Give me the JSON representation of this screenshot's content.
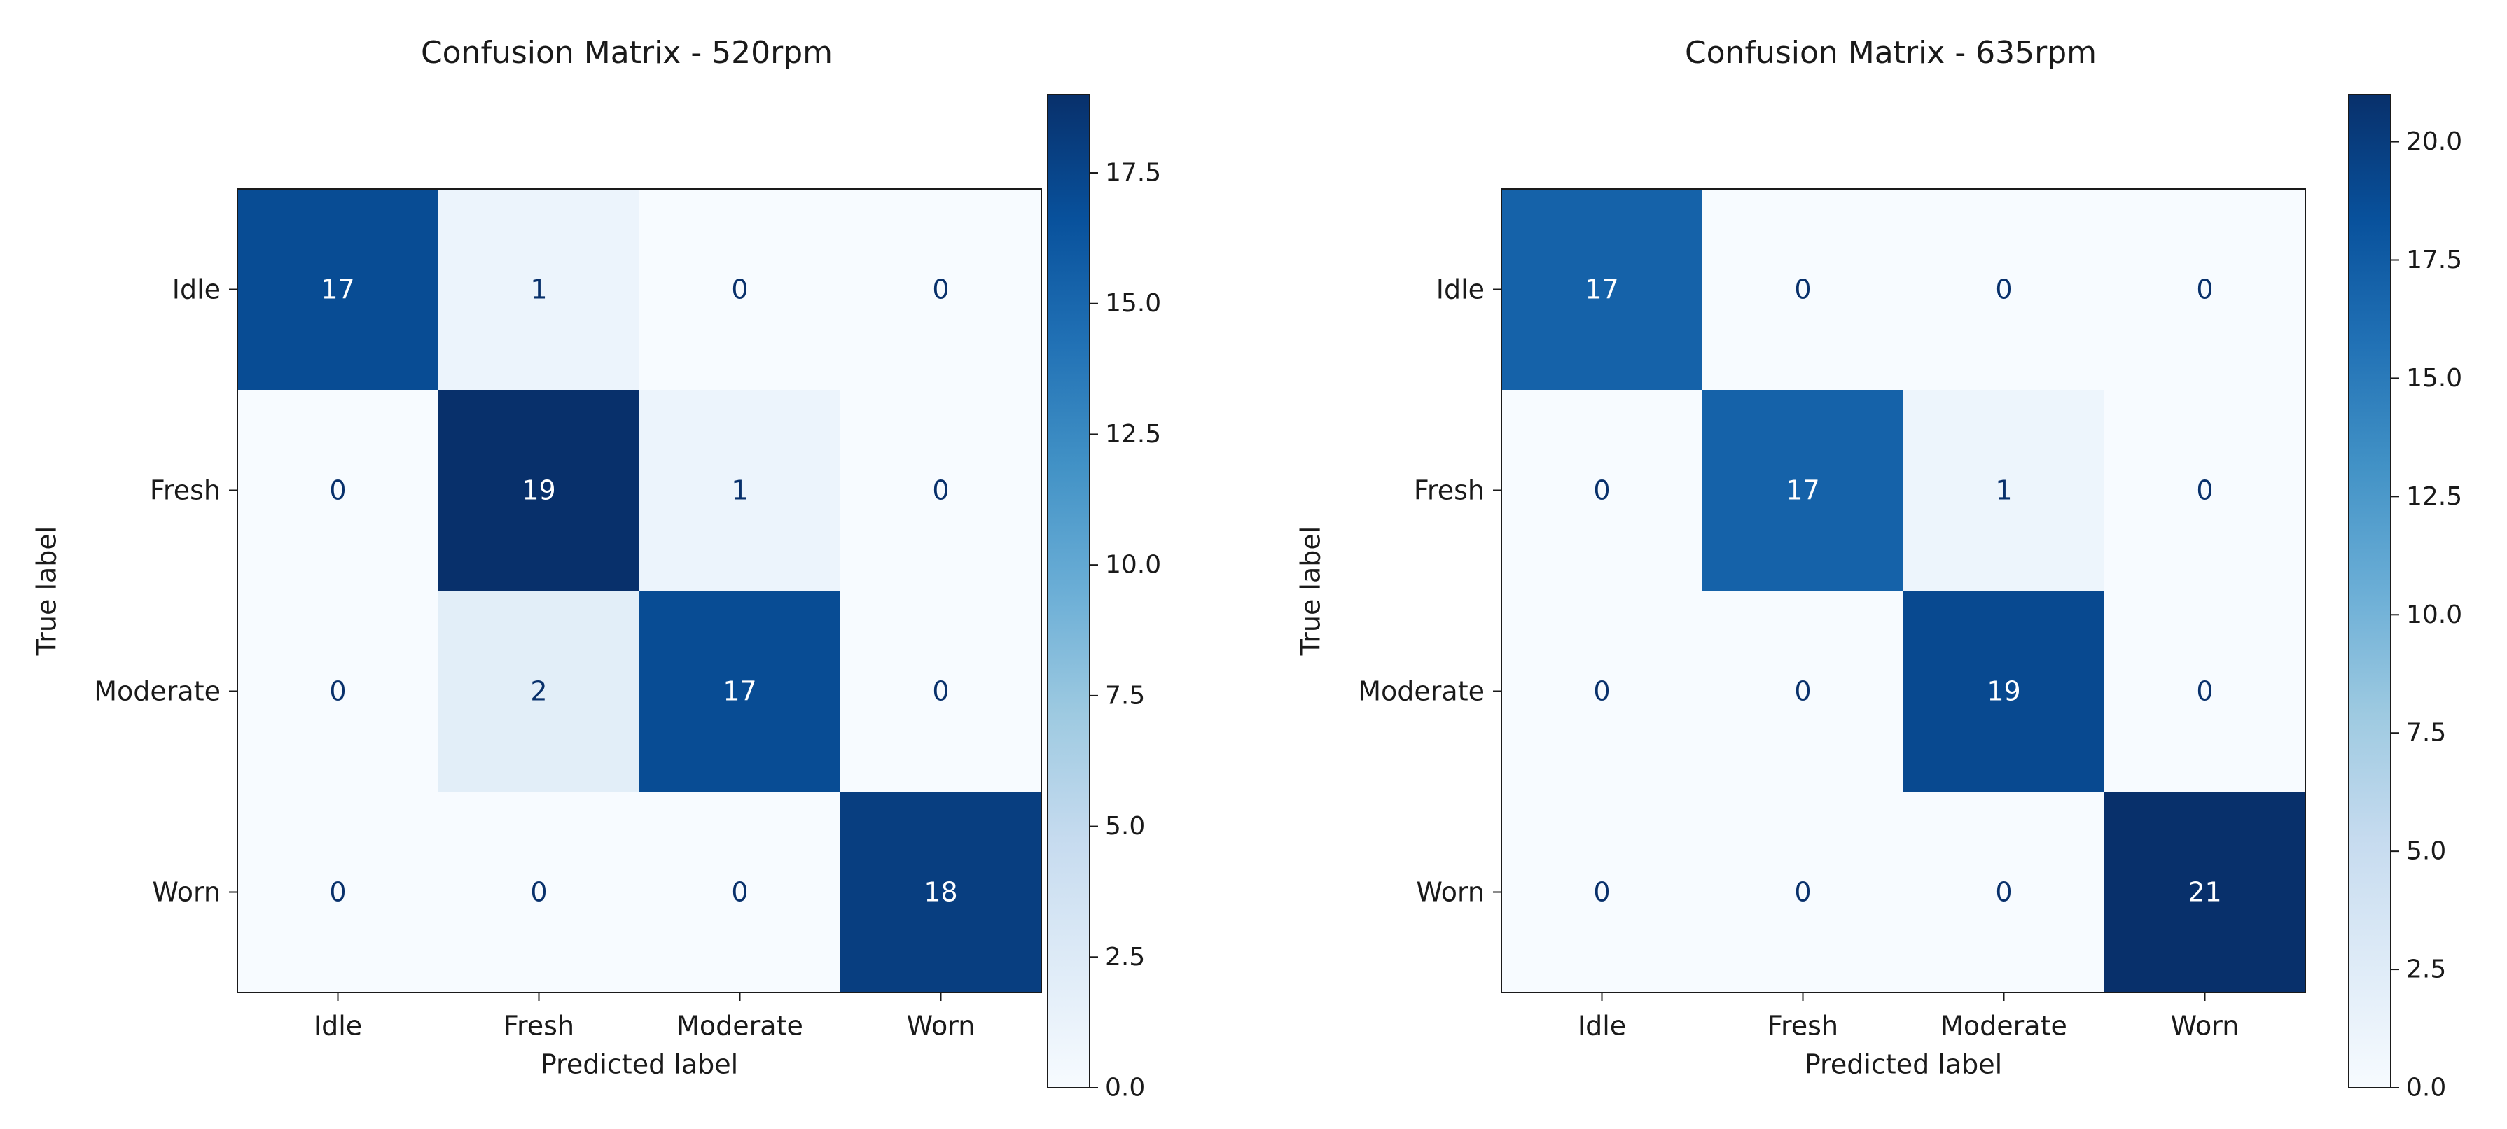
{
  "chart_data": [
    {
      "type": "heatmap",
      "title": "Confusion Matrix - 520rpm",
      "xlabel": "Predicted label",
      "ylabel": "True label",
      "x_categories": [
        "Idle",
        "Fresh",
        "Moderate",
        "Worn"
      ],
      "y_categories": [
        "Idle",
        "Fresh",
        "Moderate",
        "Worn"
      ],
      "values": [
        [
          17,
          1,
          0,
          0
        ],
        [
          0,
          19,
          1,
          0
        ],
        [
          0,
          2,
          17,
          0
        ],
        [
          0,
          0,
          0,
          18
        ]
      ],
      "colormap": "Blues",
      "color_range": [
        0,
        19
      ],
      "colorbar_ticks": [
        "0.0",
        "2.5",
        "5.0",
        "7.5",
        "10.0",
        "12.5",
        "15.0",
        "17.5"
      ],
      "colorbar_tick_values": [
        0,
        2.5,
        5,
        7.5,
        10,
        12.5,
        15,
        17.5
      ]
    },
    {
      "type": "heatmap",
      "title": "Confusion Matrix - 635rpm",
      "xlabel": "Predicted label",
      "ylabel": "True label",
      "x_categories": [
        "Idle",
        "Fresh",
        "Moderate",
        "Worn"
      ],
      "y_categories": [
        "Idle",
        "Fresh",
        "Moderate",
        "Worn"
      ],
      "values": [
        [
          17,
          0,
          0,
          0
        ],
        [
          0,
          17,
          1,
          0
        ],
        [
          0,
          0,
          19,
          0
        ],
        [
          0,
          0,
          0,
          21
        ]
      ],
      "colormap": "Blues",
      "color_range": [
        0,
        21
      ],
      "colorbar_ticks": [
        "0.0",
        "2.5",
        "5.0",
        "7.5",
        "10.0",
        "12.5",
        "15.0",
        "17.5",
        "20.0"
      ],
      "colorbar_tick_values": [
        0,
        2.5,
        5,
        7.5,
        10,
        12.5,
        15,
        17.5,
        20
      ]
    }
  ],
  "colors": {
    "blues_stops": [
      "#f7fbff",
      "#deebf7",
      "#c6dbef",
      "#9ecae1",
      "#6baed6",
      "#4292c6",
      "#2171b5",
      "#08519c",
      "#08306b"
    ],
    "dark_text": "#08306b",
    "light_text": "#ffffff",
    "axis": "#1a1a1a"
  }
}
